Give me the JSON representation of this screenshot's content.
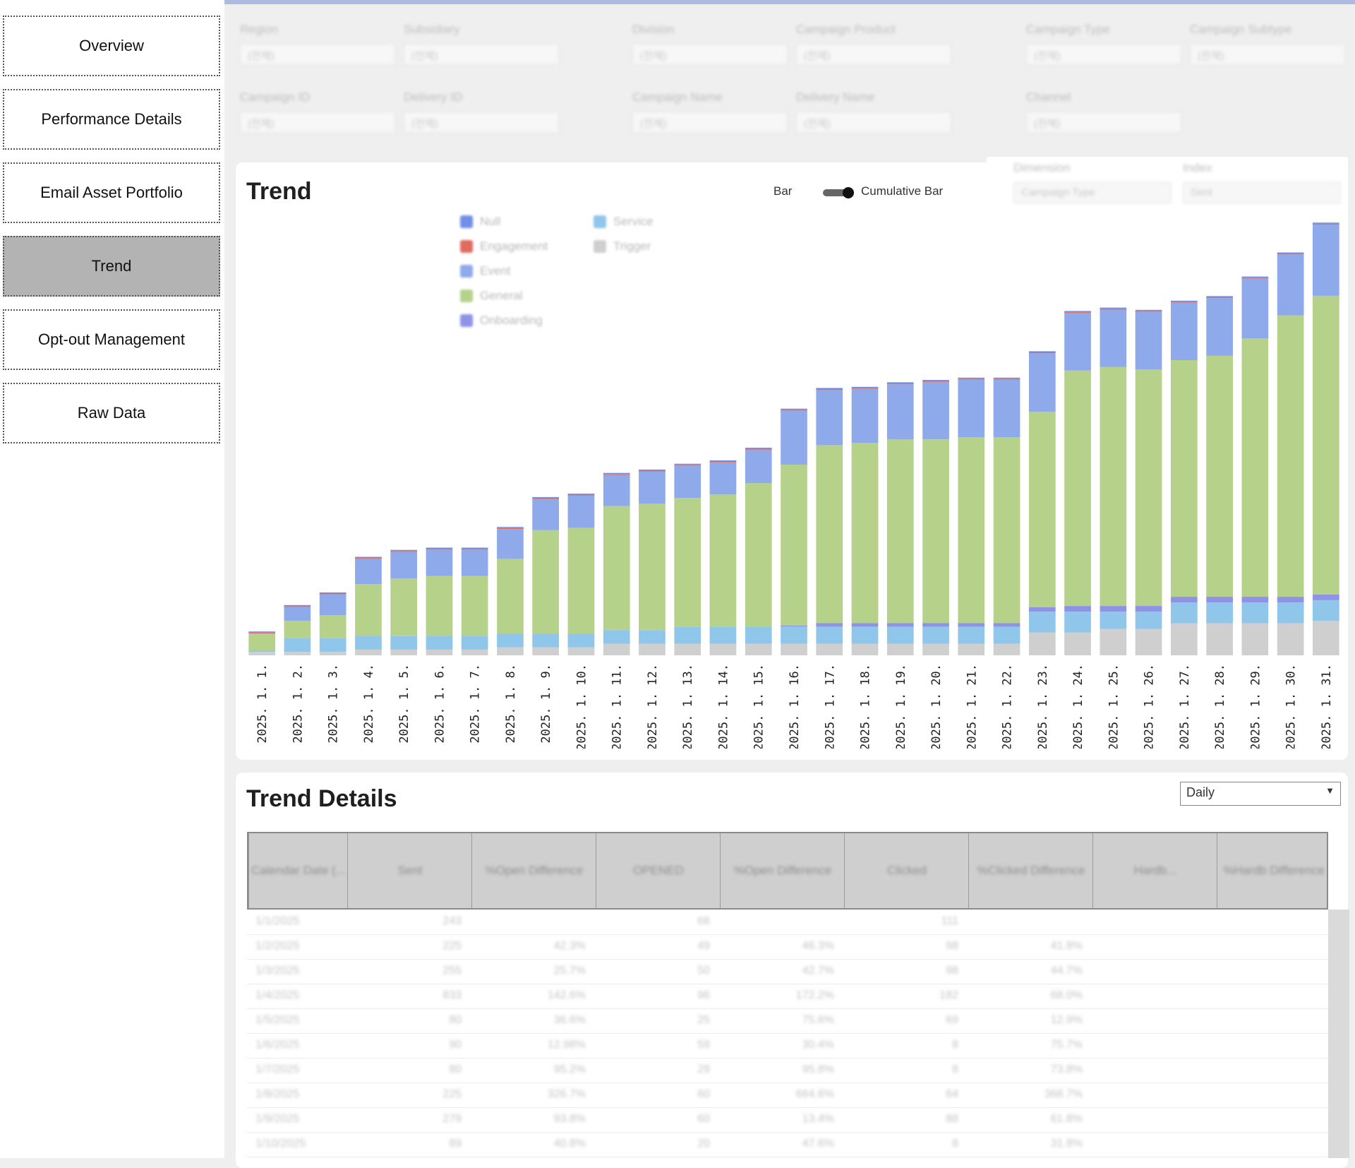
{
  "sidebar": {
    "items": [
      {
        "label": "Overview",
        "active": false
      },
      {
        "label": "Performance Details",
        "active": false
      },
      {
        "label": "Email Asset Portfolio",
        "active": false
      },
      {
        "label": "Trend",
        "active": true
      },
      {
        "label": "Opt-out Management",
        "active": false
      },
      {
        "label": "Raw Data",
        "active": false
      }
    ]
  },
  "filters": [
    {
      "label": "Region",
      "value": "(전체)"
    },
    {
      "label": "Subsidiary",
      "value": "(전체)"
    },
    {
      "label": "Division",
      "value": "(전체)"
    },
    {
      "label": "Campaign Product",
      "value": "(전체)"
    },
    {
      "label": "Campaign Type",
      "value": "(전체)"
    },
    {
      "label": "Campaign Subtype",
      "value": "(전체)"
    },
    {
      "label": "Campaign ID",
      "value": "(전체)"
    },
    {
      "label": "Delivery ID",
      "value": "(전체)"
    },
    {
      "label": "Campaign Name",
      "value": "(전체)"
    },
    {
      "label": "Delivery Name",
      "value": "(전체)"
    },
    {
      "label": "Channel",
      "value": "(전체)"
    }
  ],
  "trend": {
    "title": "Trend",
    "toggle_left": "Bar",
    "toggle_right": "Cumulative Bar",
    "dimension_label": "Dimension",
    "dimension_value": "Campaign Type",
    "index_label": "Index",
    "index_value": "Sent"
  },
  "colors": {
    "Grey": "#cfcfcf",
    "Service": "#8fc6ea",
    "Onboarding": "#8e93e6",
    "General": "#b5d18a",
    "Event": "#8eaaea",
    "Engagement": "#e06b5f",
    "Null": "#6f8fe8"
  },
  "chart_data": {
    "type": "bar",
    "stacked": true,
    "categories": [
      "2025. 1. 1.",
      "2025. 1. 2.",
      "2025. 1. 3.",
      "2025. 1. 4.",
      "2025. 1. 5.",
      "2025. 1. 6.",
      "2025. 1. 7.",
      "2025. 1. 8.",
      "2025. 1. 9.",
      "2025. 1. 10.",
      "2025. 1. 11.",
      "2025. 1. 12.",
      "2025. 1. 13.",
      "2025. 1. 14.",
      "2025. 1. 15.",
      "2025. 1. 16.",
      "2025. 1. 17.",
      "2025. 1. 18.",
      "2025. 1. 19.",
      "2025. 1. 20.",
      "2025. 1. 21.",
      "2025. 1. 22.",
      "2025. 1. 23.",
      "2025. 1. 24.",
      "2025. 1. 25.",
      "2025. 1. 26.",
      "2025. 1. 27.",
      "2025. 1. 28.",
      "2025. 1. 29.",
      "2025. 1. 30.",
      "2025. 1. 31."
    ],
    "series": [
      {
        "name": "Trigger",
        "color": "#cfcfcf",
        "values": [
          3,
          3,
          3,
          5,
          5,
          5,
          5,
          7,
          7,
          7,
          10,
          10,
          10,
          10,
          10,
          10,
          10,
          10,
          10,
          10,
          10,
          10,
          20,
          20,
          23,
          23,
          28,
          28,
          28,
          28,
          30
        ]
      },
      {
        "name": "Service",
        "color": "#8fc6ea",
        "values": [
          1,
          12,
          12,
          12,
          12,
          12,
          12,
          12,
          12,
          12,
          12,
          12,
          15,
          15,
          15,
          15,
          15,
          15,
          15,
          15,
          15,
          15,
          18,
          18,
          15,
          15,
          18,
          18,
          18,
          18,
          18
        ]
      },
      {
        "name": "Onboarding",
        "color": "#8e93e6",
        "values": [
          0,
          0,
          0,
          0,
          0,
          0,
          0,
          0,
          0,
          0,
          0,
          0,
          0,
          0,
          0,
          1,
          3,
          3,
          3,
          3,
          3,
          3,
          4,
          5,
          5,
          5,
          5,
          5,
          5,
          5,
          5
        ]
      },
      {
        "name": "General",
        "color": "#b5d18a",
        "values": [
          15,
          15,
          20,
          45,
          50,
          52,
          52,
          65,
          90,
          92,
          108,
          110,
          112,
          115,
          125,
          140,
          155,
          157,
          160,
          160,
          162,
          162,
          170,
          205,
          208,
          206,
          206,
          210,
          225,
          245,
          260
        ]
      },
      {
        "name": "Event",
        "color": "#8eaaea",
        "values": [
          0,
          12,
          18,
          22,
          23,
          23,
          23,
          26,
          27,
          28,
          27,
          28,
          28,
          28,
          29,
          47,
          48,
          47,
          48,
          50,
          50,
          50,
          51,
          50,
          50,
          50,
          50,
          50,
          52,
          53,
          62
        ]
      },
      {
        "name": "Engagement",
        "color": "#e06b5f",
        "values": [
          0.8,
          0.8,
          0.8,
          0.8,
          0.8,
          0.8,
          0.8,
          0.8,
          0.8,
          0.8,
          0.8,
          0.8,
          0.8,
          0.8,
          0.8,
          0.8,
          0.8,
          0.8,
          0.8,
          0.8,
          0.8,
          0.8,
          0.8,
          0.8,
          0.8,
          0.8,
          0.8,
          0.8,
          0.8,
          0.8,
          0.8
        ]
      },
      {
        "name": "Null",
        "color": "#6f8fe8",
        "values": [
          1,
          1,
          1,
          1,
          1,
          1,
          1,
          1,
          1,
          1,
          1,
          1,
          1,
          1,
          1,
          1,
          1,
          1,
          1,
          1,
          1,
          1,
          1,
          1,
          1,
          1,
          1,
          1,
          1,
          1,
          1
        ]
      }
    ],
    "legend": [
      "Null",
      "Engagement",
      "Event",
      "General",
      "Onboarding",
      "Service",
      "Trigger"
    ],
    "ylim": [
      0,
      380
    ],
    "grid": false,
    "legend_position": "top-left"
  },
  "details": {
    "title": "Trend Details",
    "period": "Daily",
    "columns": [
      "Calendar Date (...",
      "Sent",
      "%Open Difference",
      "OPENED",
      "%Open Difference",
      "Clicked",
      "%Clicked Difference",
      "Hardb...",
      "%Hardb Difference"
    ],
    "rows": [
      [
        "1/1/2025",
        "243",
        "",
        "66",
        "",
        "111",
        "",
        "",
        ""
      ],
      [
        "1/2/2025",
        "225",
        "42.3%",
        "49",
        "46.3%",
        "98",
        "41.8%",
        "",
        ""
      ],
      [
        "1/3/2025",
        "255",
        "25.7%",
        "50",
        "42.7%",
        "98",
        "44.7%",
        "",
        ""
      ],
      [
        "1/4/2025",
        "833",
        "142.6%",
        "96",
        "172.2%",
        "182",
        "68.0%",
        "",
        ""
      ],
      [
        "1/5/2025",
        "80",
        "36.6%",
        "25",
        "75.6%",
        "69",
        "12.9%",
        "",
        ""
      ],
      [
        "1/6/2025",
        "90",
        "12.98%",
        "59",
        "30.4%",
        "8",
        "75.7%",
        "",
        ""
      ],
      [
        "1/7/2025",
        "80",
        "95.2%",
        "29",
        "95.8%",
        "8",
        "73.8%",
        "",
        ""
      ],
      [
        "1/8/2025",
        "225",
        "326.7%",
        "60",
        "664.6%",
        "64",
        "368.7%",
        "",
        ""
      ],
      [
        "1/9/2025",
        "279",
        "93.8%",
        "60",
        "13.4%",
        "88",
        "61.8%",
        "",
        ""
      ],
      [
        "1/10/2025",
        "89",
        "40.8%",
        "20",
        "47.6%",
        "8",
        "31.8%",
        "",
        ""
      ]
    ]
  }
}
